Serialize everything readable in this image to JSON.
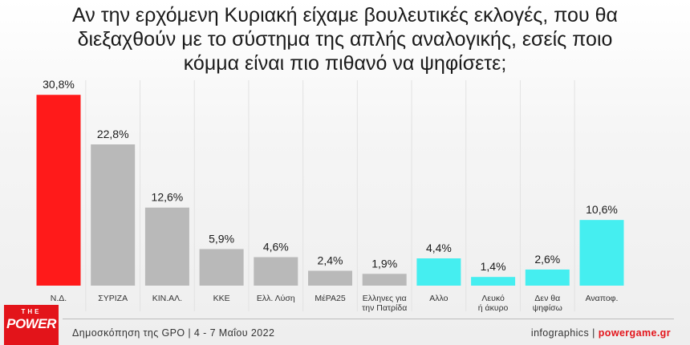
{
  "title": "Αν την ερχόμενη Κυριακή είχαμε βουλευτικές εκλογές, που θα\nδιεξαχθούν με το σύστημα της απλής αναλογικής, εσείς ποιο\nκόμμα είναι πιο πιθανό να ψηφίσετε;",
  "footer": {
    "source": "Δημοσκόπηση της GPO | 4 - 7 Μαΐου 2022",
    "credit_label": "infographics",
    "credit_sep": "|",
    "credit_site": "powergame.gr",
    "logo_top": "THE",
    "logo_main": "POWER"
  },
  "colors": {
    "nd": "#ff1a1a",
    "party": "#b9b9b9",
    "other": "#45eef0",
    "text": "#1a1a1a",
    "accent": "#e3141a"
  },
  "chart_data": {
    "type": "bar",
    "title": "Αν την ερχόμενη Κυριακή είχαμε βουλευτικές εκλογές, που θα διεξαχθούν με το σύστημα της απλής αναλογικής, εσείς ποιο κόμμα είναι πιο πιθανό να ψηφίσετε;",
    "xlabel": "",
    "ylabel": "",
    "unit": "%",
    "grid": false,
    "legend": "none",
    "categories": [
      [
        "Ν.Δ."
      ],
      [
        "ΣΥΡΙΖΑ"
      ],
      [
        "ΚΙΝ.ΑΛ."
      ],
      [
        "ΚΚΕ"
      ],
      [
        "Ελλ. Λύση"
      ],
      [
        "ΜέΡΑ25"
      ],
      [
        "Ελληνες για",
        "την Πατρίδα"
      ],
      [
        "Αλλο"
      ],
      [
        "Λευκό",
        "ή άκυρο"
      ],
      [
        "Δεν θα",
        "ψηφίσω"
      ],
      [
        "Αναποφ."
      ]
    ],
    "values": [
      30.8,
      22.8,
      12.6,
      5.9,
      4.6,
      2.4,
      1.9,
      4.4,
      1.4,
      2.6,
      10.6
    ],
    "value_labels": [
      "30,8%",
      "22,8%",
      "12,6%",
      "5,9%",
      "4,6%",
      "2,4%",
      "1,9%",
      "4,4%",
      "1,4%",
      "2,6%",
      "10,6%"
    ],
    "bar_colors": [
      "nd",
      "party",
      "party",
      "party",
      "party",
      "party",
      "party",
      "other",
      "other",
      "other",
      "other"
    ]
  }
}
